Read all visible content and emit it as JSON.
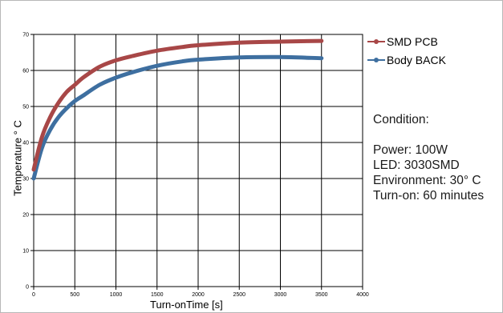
{
  "chart_data": {
    "type": "line",
    "xlabel": "Turn-onTime [s]",
    "ylabel": "Temperature ° C",
    "xlim": [
      0,
      4000
    ],
    "ylim": [
      0,
      70
    ],
    "xticks": [
      0,
      500,
      1000,
      1500,
      2000,
      2500,
      3000,
      3500,
      4000
    ],
    "yticks": [
      0,
      10,
      20,
      30,
      40,
      50,
      60,
      70
    ],
    "grid": true,
    "legend_position": "top-right",
    "series": [
      {
        "name": "SMD PCB",
        "color": "#a84747",
        "x": [
          0,
          100,
          200,
          300,
          400,
          500,
          600,
          800,
          1000,
          1200,
          1500,
          1800,
          2000,
          2500,
          3000,
          3500
        ],
        "y": [
          32.5,
          41.5,
          47.0,
          51.0,
          54.0,
          56.0,
          58.0,
          61.0,
          62.8,
          64.0,
          65.5,
          66.5,
          67.0,
          67.7,
          68.0,
          68.2
        ]
      },
      {
        "name": "Body BACK",
        "color": "#3e6fa0",
        "x": [
          0,
          100,
          200,
          300,
          400,
          500,
          600,
          800,
          1000,
          1200,
          1500,
          1800,
          2000,
          2500,
          3000,
          3500
        ],
        "y": [
          30.0,
          38.5,
          43.5,
          47.0,
          49.5,
          51.5,
          53.0,
          56.0,
          58.0,
          59.5,
          61.3,
          62.5,
          63.0,
          63.6,
          63.7,
          63.4
        ]
      }
    ]
  },
  "conditions": {
    "title": "Condition:",
    "lines": [
      "Power: 100W",
      "LED: 3030SMD",
      "Environment: 30° C",
      "Turn-on: 60 minutes"
    ]
  }
}
